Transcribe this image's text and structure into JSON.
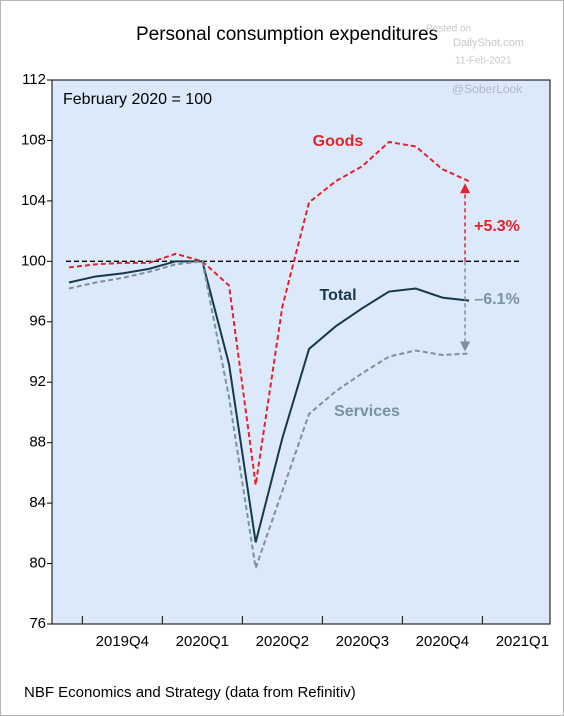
{
  "chart_data": {
    "type": "line",
    "title": "Personal consumption expenditures",
    "subtitle": "February 2020 = 100",
    "watermark": [
      "Posted on",
      "DailyShot.com",
      "11-Feb-2021",
      "@SoberLook"
    ],
    "source": "NBF Economics and Strategy (data from Refinitiv)",
    "categories": [
      null,
      null,
      null,
      null,
      null,
      null,
      null,
      null,
      null,
      null,
      null,
      null,
      null,
      null,
      null,
      null
    ],
    "quarters": [
      "2019Q4",
      "2020Q1",
      "2020Q2",
      "2020Q3",
      "2020Q4",
      "2021Q1"
    ],
    "ylim": [
      76,
      112
    ],
    "yticks": [
      76,
      80,
      84,
      88,
      92,
      96,
      100,
      104,
      108,
      112
    ],
    "reference_line": 100,
    "series": [
      {
        "name": "Goods",
        "color": "#e3222b",
        "dash": true,
        "values": [
          99.6,
          99.8,
          99.9,
          99.9,
          100.5,
          100.0,
          98.4,
          85.2,
          97.0,
          103.9,
          105.3,
          106.3,
          107.9,
          107.6,
          106.1,
          105.3
        ]
      },
      {
        "name": "Total",
        "color": "#17384a",
        "dash": false,
        "values": [
          98.6,
          99.0,
          99.2,
          99.5,
          100.0,
          100.0,
          93.2,
          81.4,
          88.3,
          94.2,
          95.7,
          96.9,
          98.0,
          98.2,
          97.6,
          97.4
        ]
      },
      {
        "name": "Services",
        "color": "#7b919d",
        "dash": true,
        "values": [
          98.2,
          98.6,
          98.9,
          99.3,
          99.8,
          100.0,
          91.0,
          79.7,
          84.8,
          89.9,
          91.4,
          92.6,
          93.7,
          94.1,
          93.8,
          93.9
        ]
      }
    ],
    "annotations": [
      "+5.3%",
      "–6.1%"
    ]
  }
}
